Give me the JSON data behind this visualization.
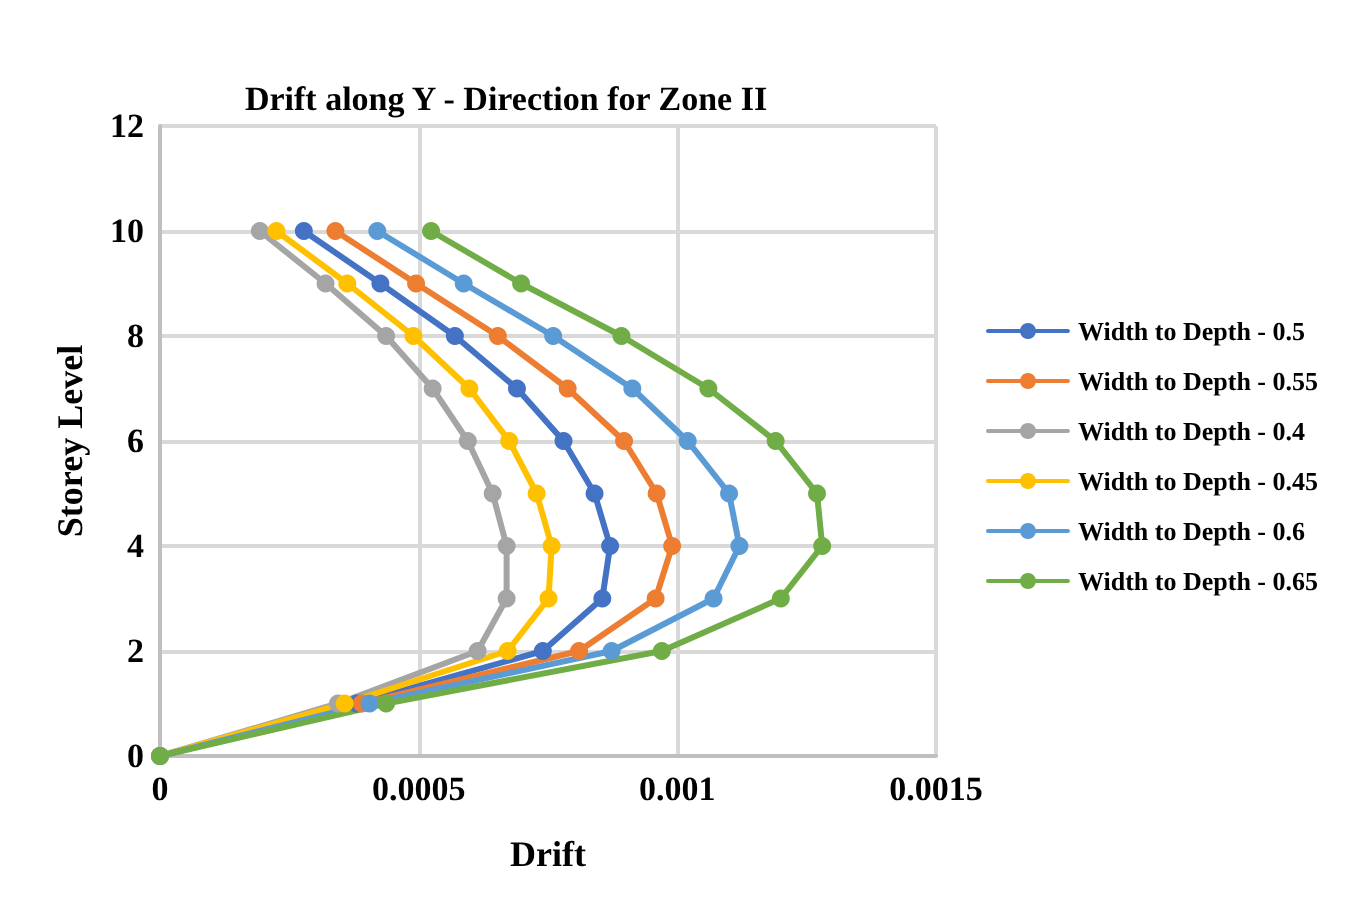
{
  "chart_data": {
    "type": "line",
    "title": "Drift along Y - Direction for Zone II",
    "xlabel": "Drift",
    "ylabel": "Storey Level",
    "xlim": [
      0,
      0.0015
    ],
    "xticks": [
      0,
      0.0005,
      0.001,
      0.0015
    ],
    "ylim": [
      0,
      12
    ],
    "yticks": [
      0,
      2,
      4,
      6,
      8,
      10,
      12
    ],
    "grid": true,
    "legend": "right",
    "marker": "circle",
    "line_style": "solid",
    "series": [
      {
        "name": "Width to Depth - 0.5",
        "color": "#4472c4",
        "x": [
          0,
          0.00038,
          0.00074,
          0.000855,
          0.00087,
          0.00084,
          0.00078,
          0.00069,
          0.00057,
          0.000426,
          0.000278
        ],
        "values": [
          0,
          1,
          2,
          3,
          4,
          5,
          6,
          7,
          8,
          9,
          10
        ]
      },
      {
        "name": "Width to Depth - 0.55",
        "color": "#ed7d31",
        "x": [
          0,
          0.00039,
          0.00081,
          0.000958,
          0.00099,
          0.00096,
          0.000897,
          0.000788,
          0.000653,
          0.000495,
          0.000339
        ],
        "values": [
          0,
          1,
          2,
          3,
          4,
          5,
          6,
          7,
          8,
          9,
          10
        ]
      },
      {
        "name": "Width to Depth - 0.4",
        "color": "#a5a5a5",
        "x": [
          0,
          0.000344,
          0.000614,
          0.00067,
          0.00067,
          0.000643,
          0.000595,
          0.000527,
          0.000437,
          0.00032,
          0.000193
        ],
        "values": [
          0,
          1,
          2,
          3,
          4,
          5,
          6,
          7,
          8,
          9,
          10
        ]
      },
      {
        "name": "Width to Depth - 0.45",
        "color": "#ffc000",
        "x": [
          0,
          0.000357,
          0.000672,
          0.000751,
          0.000757,
          0.000728,
          0.000675,
          0.000598,
          0.00049,
          0.000362,
          0.000225
        ],
        "values": [
          0,
          1,
          2,
          3,
          4,
          5,
          6,
          7,
          8,
          9,
          10
        ]
      },
      {
        "name": "Width to Depth - 0.6",
        "color": "#5b9bd5",
        "x": [
          0,
          0.000405,
          0.000873,
          0.00107,
          0.00112,
          0.0011,
          0.00102,
          0.000913,
          0.00076,
          0.000587,
          0.00042
        ],
        "values": [
          0,
          1,
          2,
          3,
          4,
          5,
          6,
          7,
          8,
          9,
          10
        ]
      },
      {
        "name": "Width to Depth - 0.65",
        "color": "#70ad47",
        "x": [
          0,
          0.000437,
          0.00097,
          0.0012,
          0.00128,
          0.00127,
          0.00119,
          0.00106,
          0.000892,
          0.000698,
          0.000524
        ],
        "values": [
          0,
          1,
          2,
          3,
          4,
          5,
          6,
          7,
          8,
          9,
          10
        ]
      }
    ]
  }
}
